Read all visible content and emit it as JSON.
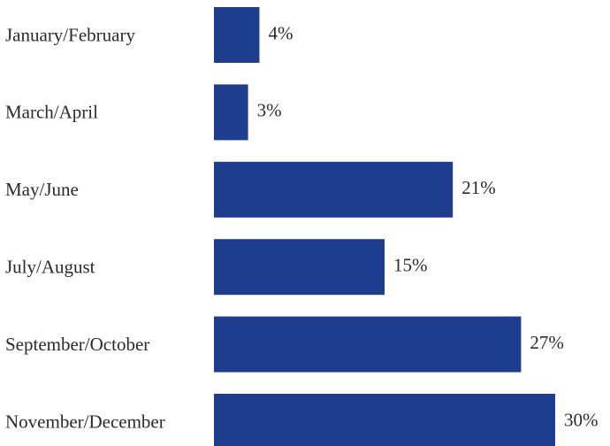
{
  "chart_data": {
    "type": "bar",
    "orientation": "horizontal",
    "categories": [
      "January/February",
      "March/April",
      "May/June",
      "July/August",
      "September/October",
      "November/December"
    ],
    "values": [
      4,
      3,
      21,
      15,
      27,
      30
    ],
    "value_labels": [
      "4%",
      "3%",
      "21%",
      "15%",
      "27%",
      "30%"
    ],
    "color": "#1f3d8e"
  }
}
